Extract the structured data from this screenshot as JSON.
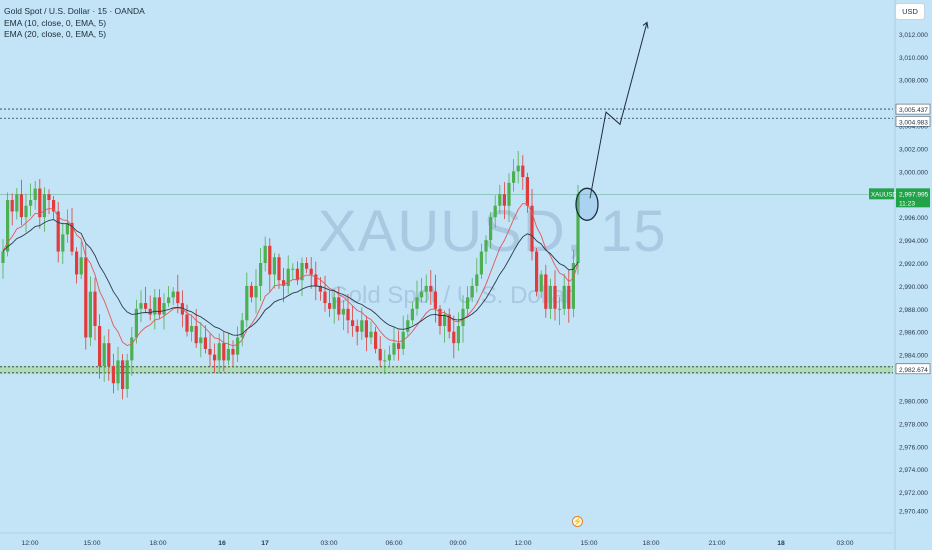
{
  "legend": {
    "title": "Gold Spot / U.S. Dollar · 15 · OANDA",
    "ema1": "EMA (10, close, 0, EMA, 5)",
    "ema2": "EMA (20, close, 0, EMA, 5)"
  },
  "currency_button": "USD",
  "watermark": {
    "symbol": "XAUUSD, 15",
    "name": "Gold Spot / U.S. Dollar"
  },
  "price_axis": {
    "ticks": [
      "3,012.000",
      "3,010.000",
      "3,008.000",
      "3,004.000",
      "3,002.000",
      "3,000.000",
      "2,996.000",
      "2,994.000",
      "2,992.000",
      "2,990.000",
      "2,988.000",
      "2,986.000",
      "2,984.000",
      "2,980.000",
      "2,978.000",
      "2,976.000",
      "2,974.000",
      "2,972.000",
      "2,970.400"
    ],
    "current_symbol": "XAUUSD",
    "current_price": "2,997.995",
    "countdown": "11:23",
    "upper_level_1": "3,005.437",
    "upper_level_2": "3,004.983",
    "lower_level": "2,982.674"
  },
  "time_axis": {
    "labels": [
      "12:00",
      "15:00",
      "18:00",
      "16",
      "17",
      "03:00",
      "06:00",
      "09:00",
      "12:00",
      "15:00",
      "18:00",
      "21:00",
      "18",
      "03:00"
    ]
  },
  "colors": {
    "background": "#c3e3f7",
    "up": "#26a69a",
    "up_candle": "#4caf50",
    "down": "#e03c3c",
    "ema10": "#e05a5a",
    "ema20": "#2b3a4a",
    "zone": "#a8d8a0",
    "price_badge": "#22a34a"
  },
  "chart_data": {
    "type": "candlestick",
    "title": "Gold Spot / U.S. Dollar · 15 · OANDA",
    "ylim": [
      2970.0,
      3014.0
    ],
    "y_ticks": [
      3012,
      3010,
      3008,
      3004,
      3002,
      3000,
      2996,
      2994,
      2992,
      2990,
      2988,
      2986,
      2984,
      2980,
      2978,
      2976,
      2974,
      2972,
      2970.4
    ],
    "x_ticks": [
      "12:00",
      "15:00",
      "18:00",
      "16",
      "17",
      "03:00",
      "06:00",
      "09:00",
      "12:00",
      "15:00",
      "18:00",
      "21:00",
      "18",
      "03:00"
    ],
    "closes": [
      2993.0,
      2997.5,
      2996.5,
      2998.0,
      2996.0,
      2997.0,
      2997.5,
      2998.5,
      2996.0,
      2998.0,
      2997.5,
      2996.5,
      2993.0,
      2994.5,
      2995.5,
      2993.0,
      2991.0,
      2992.5,
      2985.5,
      2989.5,
      2986.5,
      2983.0,
      2985.0,
      2983.0,
      2981.5,
      2983.5,
      2981.0,
      2983.5,
      2985.5,
      2988.0,
      2988.5,
      2988.0,
      2987.5,
      2989.0,
      2987.5,
      2988.5,
      2989.0,
      2989.5,
      2988.5,
      2987.5,
      2986.0,
      2986.5,
      2985.0,
      2985.5,
      2984.5,
      2984.0,
      2983.5,
      2985.0,
      2983.5,
      2984.5,
      2984.0,
      2985.5,
      2987.0,
      2990.0,
      2989.0,
      2990.0,
      2992.0,
      2993.5,
      2991.0,
      2992.5,
      2990.5,
      2990.0,
      2991.5,
      2991.5,
      2990.5,
      2992.0,
      2991.5,
      2991.0,
      2990.0,
      2989.5,
      2988.5,
      2988.0,
      2989.0,
      2987.5,
      2988.0,
      2987.0,
      2986.5,
      2986.0,
      2987.0,
      2985.5,
      2986.0,
      2984.5,
      2983.5,
      2983.5,
      2984.0,
      2985.0,
      2984.5,
      2986.0,
      2987.0,
      2988.0,
      2989.0,
      2989.5,
      2990.0,
      2989.5,
      2988.0,
      2986.5,
      2987.5,
      2986.0,
      2985.0,
      2986.5,
      2988.0,
      2989.0,
      2990.0,
      2991.0,
      2993.0,
      2994.0,
      2996.0,
      2997.0,
      2998.0,
      2997.0,
      2999.0,
      3000.0,
      3000.5,
      2999.5,
      2997.0,
      2993.0,
      2989.5,
      2991.0,
      2988.0,
      2990.0,
      2988.0,
      2988.0,
      2990.0,
      2988.0,
      2992.0,
      2998.0
    ],
    "series": [
      {
        "name": "EMA (10, close, 0, EMA, 5)"
      },
      {
        "name": "EMA (20, close, 0, EMA, 5)"
      }
    ],
    "horizontal_levels": [
      3005.437,
      3004.983,
      2982.674
    ],
    "current_price": 2997.995,
    "projection_arrow_to": 3013.0,
    "grid": false
  }
}
